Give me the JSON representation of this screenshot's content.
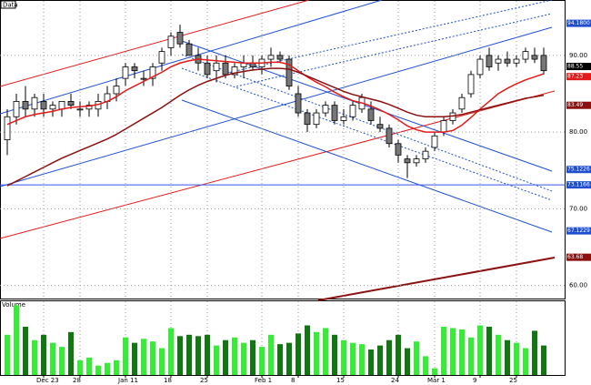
{
  "chart_data": {
    "type": "candlestick",
    "title": "Data",
    "volume_title": "Volume",
    "categories": [
      null,
      null,
      null,
      null,
      "Dec 23",
      null,
      null,
      null,
      "28",
      null,
      null,
      null,
      null,
      "Jan 11",
      null,
      null,
      null,
      null,
      "18",
      null,
      null,
      null,
      "25",
      null,
      null,
      null,
      null,
      null,
      "Feb 1",
      null,
      null,
      null,
      "8",
      null,
      null,
      null,
      null,
      "15",
      null,
      null,
      null,
      null,
      null,
      "24",
      null,
      null,
      null,
      "Mar 1",
      null,
      null,
      null,
      null,
      "9",
      null,
      null,
      null,
      "25",
      null,
      null,
      null
    ],
    "open": [
      79,
      82,
      84,
      83,
      84,
      83,
      83,
      84,
      83,
      83,
      83,
      84,
      85,
      87,
      88.5,
      87,
      87,
      89,
      91,
      93,
      91.5,
      90,
      89,
      88,
      89,
      87.5,
      88.5,
      89,
      88.5,
      89.5,
      90,
      89.5,
      85,
      82.5,
      81,
      82.5,
      83.5,
      81.5,
      82,
      83,
      83,
      81,
      80.5,
      78.5,
      76.5,
      76,
      76.5,
      78,
      80,
      81.5,
      83,
      85,
      87.5,
      90,
      89,
      89.5,
      89,
      89.5,
      90,
      90
    ],
    "high": [
      83,
      85,
      86,
      85,
      85,
      84,
      84,
      85,
      84,
      84,
      85,
      86,
      87,
      89,
      89,
      88,
      89,
      91,
      93,
      94,
      92,
      91,
      90,
      90,
      90,
      89,
      90,
      90,
      90,
      91,
      90.5,
      90,
      86,
      83,
      83,
      84,
      84,
      83,
      84,
      85,
      84,
      82,
      81,
      79,
      77,
      77,
      78,
      80,
      82,
      83,
      85,
      88,
      90,
      91,
      90,
      90.5,
      90,
      91,
      91,
      91
    ],
    "low": [
      77,
      81,
      82,
      82,
      82,
      82,
      82,
      83,
      82,
      82,
      82,
      83,
      84,
      86,
      87,
      86,
      86,
      88,
      90,
      91,
      90,
      88,
      87,
      86.5,
      87,
      87,
      87,
      88,
      87.5,
      88.5,
      89,
      85.5,
      82,
      80,
      80.5,
      82,
      81,
      81,
      81.5,
      82.5,
      81,
      80,
      78,
      76,
      74,
      75.5,
      76,
      77.5,
      79.5,
      81,
      82.5,
      84.5,
      87,
      88,
      88,
      88.5,
      88.5,
      89,
      89,
      87.5
    ],
    "close": [
      82,
      84,
      83,
      84.5,
      83,
      83.5,
      84,
      83.5,
      83,
      83.5,
      84,
      85,
      86,
      88.5,
      88,
      87,
      88.5,
      90.5,
      92.5,
      91.5,
      90,
      89,
      87.5,
      89,
      87.5,
      88.5,
      89,
      88.5,
      89.5,
      90,
      89.5,
      86,
      82.5,
      81,
      82.5,
      83.5,
      81.5,
      82,
      83.5,
      84.5,
      81.5,
      80.5,
      78.5,
      77,
      76,
      76.5,
      77.5,
      79.5,
      81.5,
      82.5,
      84.5,
      87.5,
      89.5,
      88.5,
      89.5,
      89,
      89.5,
      90.5,
      89.5,
      88
    ],
    "up_color": "#ffffff",
    "down_color": "#777777",
    "series": [
      {
        "color": "#e31a1a",
        "values": [
          81,
          81.5,
          82,
          82.3,
          82.5,
          82.7,
          83,
          83.2,
          83.3,
          83.4,
          83.6,
          84,
          84.6,
          85.4,
          86,
          86.6,
          87.2,
          87.8,
          88.5,
          89,
          89.3,
          89.5,
          89.4,
          89.3,
          89.2,
          89.1,
          89,
          89,
          89,
          89.1,
          89.1,
          88.8,
          88,
          87.2,
          86.5,
          85.9,
          85.2,
          84.6,
          84.1,
          83.8,
          83.4,
          82.9,
          82.3,
          81.6,
          80.8,
          80.3,
          80,
          80,
          80,
          80.2,
          80.9,
          81.9,
          83,
          84,
          85,
          85.7,
          86.3,
          86.8,
          87.2,
          87.6
        ]
      },
      {
        "color": "#8b1010",
        "values": [
          73,
          73.6,
          74.2,
          74.8,
          75.4,
          76,
          76.6,
          77.1,
          77.6,
          78.1,
          78.6,
          79.1,
          79.7,
          80.4,
          81.1,
          81.8,
          82.5,
          83.2,
          84,
          84.8,
          85.5,
          86.1,
          86.6,
          87,
          87.4,
          87.7,
          87.9,
          88.1,
          88.2,
          88.3,
          88.3,
          88.2,
          87.8,
          87.3,
          86.8,
          86.3,
          85.8,
          85.3,
          84.9,
          84.6,
          84.3,
          84,
          83.6,
          83.1,
          82.6,
          82.2,
          82,
          82,
          82,
          82.1,
          82.3,
          82.6,
          82.9,
          83.2,
          83.5,
          83.8,
          84.1,
          84.4,
          84.6,
          84.8
        ]
      }
    ],
    "volume": [
      30000,
      52000,
      36000,
      26000,
      30000,
      24000,
      21000,
      32000,
      11000,
      13000,
      7000,
      9000,
      11000,
      28000,
      24000,
      27000,
      25000,
      20000,
      35000,
      29000,
      30000,
      29000,
      30000,
      22000,
      26000,
      28000,
      24000,
      26000,
      21000,
      30000,
      23000,
      24000,
      31000,
      37000,
      32000,
      35000,
      30000,
      26000,
      24000,
      23000,
      19000,
      22000,
      26000,
      30000,
      20000,
      25000,
      14000,
      5000,
      36000,
      35000,
      34000,
      28000,
      37000,
      36000,
      30000,
      26000,
      24000,
      20000,
      33000,
      22000
    ],
    "volume_colors": [
      "#33ee33",
      "#117711"
    ],
    "volume_ylim": [
      0,
      55000
    ],
    "ylim": [
      58.3,
      97.1
    ],
    "yticks": [
      {
        "value": 60,
        "label": "60.00"
      },
      {
        "value": 70,
        "label": "70.00"
      },
      {
        "value": 80,
        "label": "80.00"
      },
      {
        "value": 90,
        "label": "90.00"
      }
    ],
    "grid": true,
    "annotations": [
      {
        "value": 94.18,
        "label": "94.1800",
        "color": "#1f4fd0"
      },
      {
        "value": 88.55,
        "label": "88.55",
        "color": "#000000"
      },
      {
        "value": 87.23,
        "label": "87.23",
        "color": "#e31a1a"
      },
      {
        "value": 83.49,
        "label": "83.49",
        "color": "#8b1010"
      },
      {
        "value": 75.1226,
        "label": "75.1226",
        "color": "#1f4fd0"
      },
      {
        "value": 73.1166,
        "label": "73.1166",
        "color": "#1f4fd0"
      },
      {
        "value": 67.1229,
        "label": "67.1229",
        "color": "#1f4fd0"
      },
      {
        "value": 63.68,
        "label": "63.68",
        "color": "#8b1010"
      }
    ],
    "hline": {
      "value": 73.1166,
      "color": "#3355ee"
    }
  }
}
